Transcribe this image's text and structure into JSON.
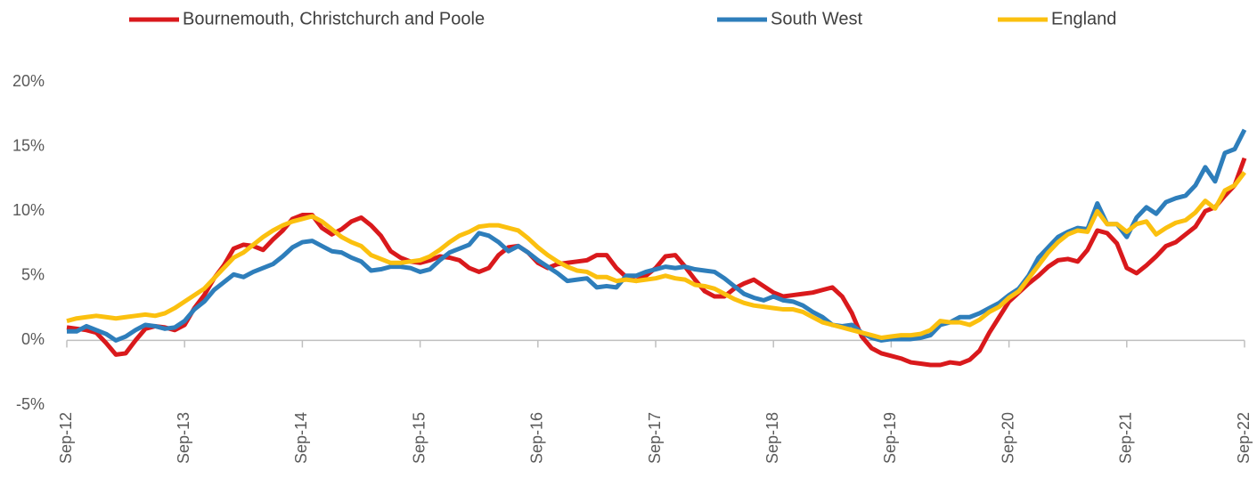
{
  "chart_data": {
    "type": "line",
    "categories": [
      "Sep-12",
      null,
      null,
      null,
      null,
      null,
      null,
      null,
      null,
      null,
      null,
      null,
      "Sep-13",
      null,
      null,
      null,
      null,
      null,
      null,
      null,
      null,
      null,
      null,
      null,
      "Sep-14",
      null,
      null,
      null,
      null,
      null,
      null,
      null,
      null,
      null,
      null,
      null,
      "Sep-15",
      null,
      null,
      null,
      null,
      null,
      null,
      null,
      null,
      null,
      null,
      null,
      "Sep-16",
      null,
      null,
      null,
      null,
      null,
      null,
      null,
      null,
      null,
      null,
      null,
      "Sep-17",
      null,
      null,
      null,
      null,
      null,
      null,
      null,
      null,
      null,
      null,
      null,
      "Sep-18",
      null,
      null,
      null,
      null,
      null,
      null,
      null,
      null,
      null,
      null,
      null,
      "Sep-19",
      null,
      null,
      null,
      null,
      null,
      null,
      null,
      null,
      null,
      null,
      null,
      "Sep-20",
      null,
      null,
      null,
      null,
      null,
      null,
      null,
      null,
      null,
      null,
      null,
      "Sep-21",
      null,
      null,
      null,
      null,
      null,
      null,
      null,
      null,
      null,
      null,
      null,
      "Sep-22"
    ],
    "series": [
      {
        "name": "Bournemouth, Christchurch and Poole",
        "color": "#d9191c",
        "values": [
          1.0,
          0.9,
          0.8,
          0.6,
          -0.2,
          -1.1,
          -1.0,
          0.0,
          0.9,
          1.1,
          1.0,
          0.8,
          1.2,
          2.5,
          3.5,
          4.8,
          5.8,
          7.1,
          7.4,
          7.3,
          7.0,
          7.8,
          8.5,
          9.4,
          9.7,
          9.7,
          8.7,
          8.2,
          8.6,
          9.2,
          9.5,
          8.9,
          8.1,
          6.9,
          6.4,
          6.1,
          6.0,
          6.2,
          6.5,
          6.4,
          6.2,
          5.6,
          5.3,
          5.6,
          6.6,
          7.2,
          7.3,
          6.8,
          6.0,
          5.6,
          5.9,
          6.0,
          6.1,
          6.2,
          6.6,
          6.6,
          5.6,
          4.9,
          4.6,
          5.0,
          5.6,
          6.5,
          6.6,
          5.7,
          4.7,
          3.8,
          3.4,
          3.4,
          4.0,
          4.4,
          4.7,
          4.2,
          3.7,
          3.4,
          3.5,
          3.6,
          3.7,
          3.9,
          4.1,
          3.4,
          2.1,
          0.3,
          -0.6,
          -1.0,
          -1.2,
          -1.4,
          -1.7,
          -1.8,
          -1.9,
          -1.9,
          -1.7,
          -1.8,
          -1.5,
          -0.8,
          0.6,
          1.8,
          3.0,
          3.7,
          4.4,
          5.0,
          5.7,
          6.2,
          6.3,
          6.1,
          7.0,
          8.5,
          8.3,
          7.5,
          5.6,
          5.2,
          5.8,
          6.5,
          7.3,
          7.6,
          8.2,
          8.8,
          10.0,
          10.3,
          11.2,
          12.0,
          14.1
        ]
      },
      {
        "name": "South West",
        "color": "#2e7ebb",
        "values": [
          0.7,
          0.7,
          1.1,
          0.8,
          0.5,
          0.0,
          0.3,
          0.8,
          1.2,
          1.1,
          0.9,
          1.0,
          1.5,
          2.4,
          3.0,
          3.9,
          4.5,
          5.1,
          4.9,
          5.3,
          5.6,
          5.9,
          6.5,
          7.2,
          7.6,
          7.7,
          7.3,
          6.9,
          6.8,
          6.4,
          6.1,
          5.4,
          5.5,
          5.7,
          5.7,
          5.6,
          5.3,
          5.5,
          6.2,
          6.8,
          7.1,
          7.4,
          8.3,
          8.1,
          7.6,
          6.9,
          7.3,
          6.8,
          6.2,
          5.7,
          5.2,
          4.6,
          4.7,
          4.8,
          4.1,
          4.2,
          4.1,
          5.0,
          5.0,
          5.3,
          5.5,
          5.7,
          5.6,
          5.7,
          5.5,
          5.4,
          5.3,
          4.8,
          4.2,
          3.6,
          3.3,
          3.1,
          3.4,
          3.1,
          3.0,
          2.7,
          2.2,
          1.8,
          1.2,
          1.1,
          1.2,
          0.6,
          0.2,
          0.0,
          0.1,
          0.1,
          0.1,
          0.2,
          0.4,
          1.2,
          1.4,
          1.8,
          1.8,
          2.1,
          2.5,
          2.9,
          3.5,
          4.0,
          5.0,
          6.4,
          7.2,
          8.0,
          8.4,
          8.7,
          8.6,
          10.6,
          9.0,
          9.0,
          8.0,
          9.5,
          10.3,
          9.8,
          10.7,
          11.0,
          11.2,
          12.0,
          13.4,
          12.3,
          14.5,
          14.8,
          16.3
        ]
      },
      {
        "name": "England",
        "color": "#fbc00f",
        "values": [
          1.5,
          1.7,
          1.8,
          1.9,
          1.8,
          1.7,
          1.8,
          1.9,
          2.0,
          1.9,
          2.1,
          2.5,
          3.0,
          3.5,
          4.0,
          4.8,
          5.6,
          6.4,
          6.8,
          7.4,
          8.0,
          8.5,
          8.9,
          9.2,
          9.4,
          9.6,
          9.2,
          8.6,
          8.0,
          7.6,
          7.3,
          6.6,
          6.3,
          6.0,
          6.0,
          6.1,
          6.2,
          6.5,
          7.0,
          7.6,
          8.1,
          8.4,
          8.8,
          8.9,
          8.9,
          8.7,
          8.5,
          7.9,
          7.2,
          6.6,
          6.1,
          5.7,
          5.4,
          5.3,
          4.9,
          4.9,
          4.6,
          4.7,
          4.6,
          4.7,
          4.8,
          5.0,
          4.8,
          4.7,
          4.3,
          4.2,
          4.0,
          3.6,
          3.2,
          2.9,
          2.7,
          2.6,
          2.5,
          2.4,
          2.4,
          2.2,
          1.8,
          1.4,
          1.2,
          1.0,
          0.8,
          0.6,
          0.4,
          0.2,
          0.3,
          0.4,
          0.4,
          0.5,
          0.8,
          1.5,
          1.4,
          1.4,
          1.2,
          1.6,
          2.2,
          2.6,
          3.3,
          3.8,
          4.8,
          5.8,
          6.8,
          7.6,
          8.2,
          8.5,
          8.4,
          10.0,
          9.0,
          9.0,
          8.4,
          9.0,
          9.2,
          8.2,
          8.7,
          9.1,
          9.3,
          9.9,
          10.8,
          10.2,
          11.6,
          12.0,
          13.0
        ]
      }
    ],
    "ylim": [
      -5,
      20
    ],
    "yticks": [
      {
        "value": -5,
        "label": "-5%"
      },
      {
        "value": 0,
        "label": "0%"
      },
      {
        "value": 5,
        "label": "5%"
      },
      {
        "value": 10,
        "label": "10%"
      },
      {
        "value": 15,
        "label": "15%"
      },
      {
        "value": 20,
        "label": "20%"
      }
    ],
    "grid": false,
    "legend": "top"
  }
}
